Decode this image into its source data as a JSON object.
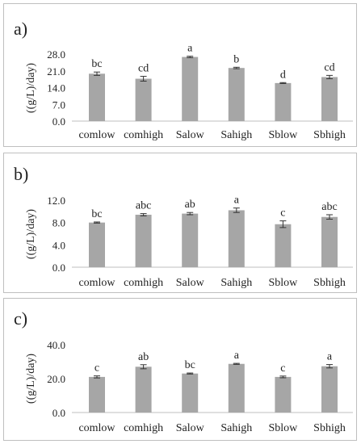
{
  "chart_data": [
    {
      "type": "bar",
      "panel_label": "a)",
      "categories": [
        "comlow",
        "comhigh",
        "Salow",
        "Sahigh",
        "Sblow",
        "Sbhigh"
      ],
      "values": [
        19.8,
        17.7,
        26.8,
        22.2,
        15.9,
        18.4
      ],
      "errors": [
        0.7,
        1.0,
        0.3,
        0.3,
        0.2,
        0.7
      ],
      "letters": [
        "bc",
        "cd",
        "a",
        "b",
        "d",
        "cd"
      ],
      "ylabel": "((g/L)/day)",
      "yticks": [
        "0.0",
        "7.0",
        "14.0",
        "21.0",
        "28.0"
      ],
      "ylim": [
        0,
        28
      ],
      "grid": false,
      "bar_color": "#a6a6a6"
    },
    {
      "type": "bar",
      "panel_label": "b)",
      "categories": [
        "comlow",
        "comhigh",
        "Salow",
        "Sahigh",
        "Sblow",
        "Sbhigh"
      ],
      "values": [
        8.0,
        9.4,
        9.6,
        10.2,
        7.7,
        9.0
      ],
      "errors": [
        0.1,
        0.2,
        0.2,
        0.4,
        0.6,
        0.4
      ],
      "letters": [
        "bc",
        "abc",
        "ab",
        "a",
        "c",
        "abc"
      ],
      "ylabel": "((g/L)/day)",
      "yticks": [
        "0.0",
        "4.0",
        "8.0",
        "12.0"
      ],
      "ylim": [
        0,
        12
      ],
      "grid": false,
      "bar_color": "#a6a6a6"
    },
    {
      "type": "bar",
      "panel_label": "c)",
      "categories": [
        "comlow",
        "comhigh",
        "Salow",
        "Sahigh",
        "Sblow",
        "Sbhigh"
      ],
      "values": [
        21.0,
        27.0,
        23.0,
        28.7,
        21.0,
        27.3
      ],
      "errors": [
        0.6,
        1.2,
        0.3,
        0.3,
        0.5,
        1.0
      ],
      "letters": [
        "c",
        "ab",
        "bc",
        "a",
        "c",
        "a"
      ],
      "ylabel": "((g/L)/day)",
      "yticks": [
        "0.0",
        "20.0",
        "40.0"
      ],
      "ylim": [
        0,
        40
      ],
      "grid": false,
      "bar_color": "#a6a6a6"
    }
  ]
}
